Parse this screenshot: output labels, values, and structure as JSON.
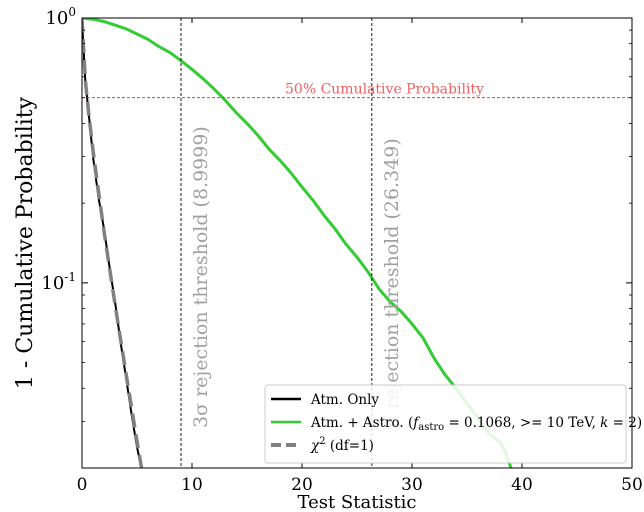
{
  "chart_data": {
    "type": "line",
    "xlabel": "Test Statistic",
    "ylabel": "1 - Cumulative Probability",
    "xlim": [
      0,
      50
    ],
    "ylim": [
      0.02,
      1.0
    ],
    "yscale": "log",
    "xticks": [
      "0",
      "10",
      "20",
      "30",
      "40",
      "50"
    ],
    "xtick_values": [
      0,
      10,
      20,
      30,
      40,
      50
    ],
    "yticks": [
      "10^0",
      "10^-1"
    ],
    "ytick_values": [
      1.0,
      0.1
    ],
    "grid": false,
    "legend_position": "lower-right",
    "series": [
      {
        "name": "Atm. Only",
        "color": "#000000",
        "style": "solid",
        "x": [
          0.0,
          0.3,
          0.6,
          1.0,
          1.5,
          2.0,
          2.5,
          3.0,
          3.5,
          4.0,
          4.5,
          5.0,
          5.4
        ],
        "y": [
          0.98,
          0.58,
          0.44,
          0.3,
          0.21,
          0.16,
          0.115,
          0.085,
          0.06,
          0.044,
          0.032,
          0.024,
          0.02
        ]
      },
      {
        "name": "Atm. + Astro. (f_astro = 0.1068, >= 10 TeV, k = 2)",
        "legend_prefix": "Atm. + Astro. (",
        "legend_sub": "astro",
        "legend_suffix": " = 0.1068, >= 10 TeV, k = 2)",
        "color": "#33cc33",
        "style": "solid",
        "x": [
          0,
          1,
          2,
          3,
          4,
          5,
          6,
          7,
          8,
          9,
          10,
          11,
          12,
          13,
          14,
          15,
          16,
          17,
          18,
          19,
          20,
          21,
          22,
          23,
          24,
          25,
          26,
          27,
          28,
          29,
          30,
          31,
          32,
          33,
          34,
          35,
          36,
          37,
          38,
          38.5,
          39
        ],
        "y": [
          1.0,
          0.99,
          0.97,
          0.94,
          0.91,
          0.87,
          0.83,
          0.78,
          0.74,
          0.69,
          0.64,
          0.59,
          0.54,
          0.49,
          0.44,
          0.4,
          0.36,
          0.32,
          0.29,
          0.26,
          0.23,
          0.205,
          0.18,
          0.16,
          0.14,
          0.125,
          0.11,
          0.095,
          0.085,
          0.078,
          0.07,
          0.062,
          0.052,
          0.045,
          0.04,
          0.035,
          0.031,
          0.027,
          0.025,
          0.023,
          0.02
        ]
      },
      {
        "name": "χ² (df=1)",
        "legend_base": "χ",
        "legend_sup": "2",
        "legend_rest": " (df=1)",
        "color": "#808080",
        "style": "dashed",
        "x": [
          0.0,
          0.3,
          0.6,
          1.0,
          1.5,
          2.0,
          2.5,
          3.0,
          3.5,
          4.0,
          4.5,
          5.0,
          5.5
        ],
        "y": [
          1.0,
          0.584,
          0.439,
          0.317,
          0.221,
          0.157,
          0.114,
          0.0833,
          0.0614,
          0.0455,
          0.0339,
          0.0253,
          0.019
        ]
      }
    ],
    "annotations": {
      "hline": {
        "y": 0.5,
        "color": "#e52020",
        "label": "50% Cumulative Probability"
      },
      "vlines": [
        {
          "x": 8.9999,
          "label": "3σ rejection threshold (8.9999)"
        },
        {
          "x": 26.349,
          "label": "σ rejection threshold (26.349)"
        }
      ]
    }
  }
}
